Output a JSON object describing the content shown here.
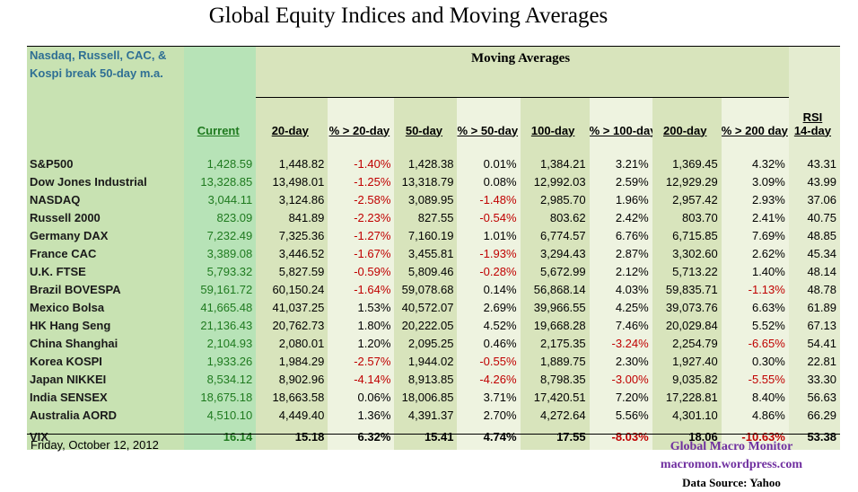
{
  "title": "Global Equity Indices and Moving Averages",
  "note": "Nasdaq, Russell, CAC, & Kospi break 50-day m.a.",
  "moving_averages_title": "Moving Averages",
  "rsi_top": "RSI",
  "columns": [
    "Current",
    "20-day",
    "% > 20-day",
    "50-day",
    "% > 50-day",
    "100-day",
    "% > 100-day",
    "200-day",
    "% > 200 day",
    "14-day"
  ],
  "rows": [
    {
      "name": "S&P500",
      "values": [
        "1,428.59",
        "1,448.82",
        "-1.40%",
        "1,428.38",
        "0.01%",
        "1,384.21",
        "3.21%",
        "1,369.45",
        "4.32%",
        "43.31"
      ]
    },
    {
      "name": "Dow Jones Industrial",
      "values": [
        "13,328.85",
        "13,498.01",
        "-1.25%",
        "13,318.79",
        "0.08%",
        "12,992.03",
        "2.59%",
        "12,929.29",
        "3.09%",
        "43.99"
      ]
    },
    {
      "name": "NASDAQ",
      "values": [
        "3,044.11",
        "3,124.86",
        "-2.58%",
        "3,089.95",
        "-1.48%",
        "2,985.70",
        "1.96%",
        "2,957.42",
        "2.93%",
        "37.06"
      ]
    },
    {
      "name": "Russell 2000",
      "values": [
        "823.09",
        "841.89",
        "-2.23%",
        "827.55",
        "-0.54%",
        "803.62",
        "2.42%",
        "803.70",
        "2.41%",
        "40.75"
      ]
    },
    {
      "name": "Germany DAX",
      "values": [
        "7,232.49",
        "7,325.36",
        "-1.27%",
        "7,160.19",
        "1.01%",
        "6,774.57",
        "6.76%",
        "6,715.85",
        "7.69%",
        "48.85"
      ]
    },
    {
      "name": "France CAC",
      "values": [
        "3,389.08",
        "3,446.52",
        "-1.67%",
        "3,455.81",
        "-1.93%",
        "3,294.43",
        "2.87%",
        "3,302.60",
        "2.62%",
        "45.34"
      ]
    },
    {
      "name": "U.K. FTSE",
      "values": [
        "5,793.32",
        "5,827.59",
        "-0.59%",
        "5,809.46",
        "-0.28%",
        "5,672.99",
        "2.12%",
        "5,713.22",
        "1.40%",
        "48.14"
      ]
    },
    {
      "name": "Brazil BOVESPA",
      "values": [
        "59,161.72",
        "60,150.24",
        "-1.64%",
        "59,078.68",
        "0.14%",
        "56,868.14",
        "4.03%",
        "59,835.71",
        "-1.13%",
        "48.78"
      ]
    },
    {
      "name": "Mexico Bolsa",
      "values": [
        "41,665.48",
        "41,037.25",
        "1.53%",
        "40,572.07",
        "2.69%",
        "39,966.55",
        "4.25%",
        "39,073.76",
        "6.63%",
        "61.89"
      ]
    },
    {
      "name": "HK  Hang Seng",
      "values": [
        "21,136.43",
        "20,762.73",
        "1.80%",
        "20,222.05",
        "4.52%",
        "19,668.28",
        "7.46%",
        "20,029.84",
        "5.52%",
        "67.13"
      ]
    },
    {
      "name": "China Shanghai",
      "values": [
        "2,104.93",
        "2,080.01",
        "1.20%",
        "2,095.25",
        "0.46%",
        "2,175.35",
        "-3.24%",
        "2,254.79",
        "-6.65%",
        "54.41"
      ]
    },
    {
      "name": "Korea KOSPI",
      "values": [
        "1,933.26",
        "1,984.29",
        "-2.57%",
        "1,944.02",
        "-0.55%",
        "1,889.75",
        "2.30%",
        "1,927.40",
        "0.30%",
        "22.81"
      ]
    },
    {
      "name": "Japan NIKKEI",
      "values": [
        "8,534.12",
        "8,902.96",
        "-4.14%",
        "8,913.85",
        "-4.26%",
        "8,798.35",
        "-3.00%",
        "9,035.82",
        "-5.55%",
        "33.30"
      ]
    },
    {
      "name": "India SENSEX",
      "values": [
        "18,675.18",
        "18,663.58",
        "0.06%",
        "18,006.85",
        "3.71%",
        "17,420.51",
        "7.20%",
        "17,228.81",
        "8.40%",
        "56.63"
      ]
    },
    {
      "name": "Australia AORD",
      "values": [
        "4,510.10",
        "4,449.40",
        "1.36%",
        "4,391.37",
        "2.70%",
        "4,272.64",
        "5.56%",
        "4,301.10",
        "4.86%",
        "66.29"
      ]
    }
  ],
  "vix": {
    "name": "VIX",
    "values": [
      "16.14",
      "15.18",
      "6.32%",
      "15.41",
      "4.74%",
      "17.55",
      "-8.03%",
      "18.06",
      "-10.63%",
      "53.38"
    ]
  },
  "footer": {
    "date": "Friday, October 12, 2012",
    "brand": "Global Macro Monitor",
    "site": "macromon.wordpress.com",
    "source": "Data Source: Yahoo"
  },
  "colors": {
    "positive_text": "#1f7a1f",
    "negative_text": "#c00000",
    "link_purple": "#7030a0",
    "note_blue": "#2f6f94"
  }
}
